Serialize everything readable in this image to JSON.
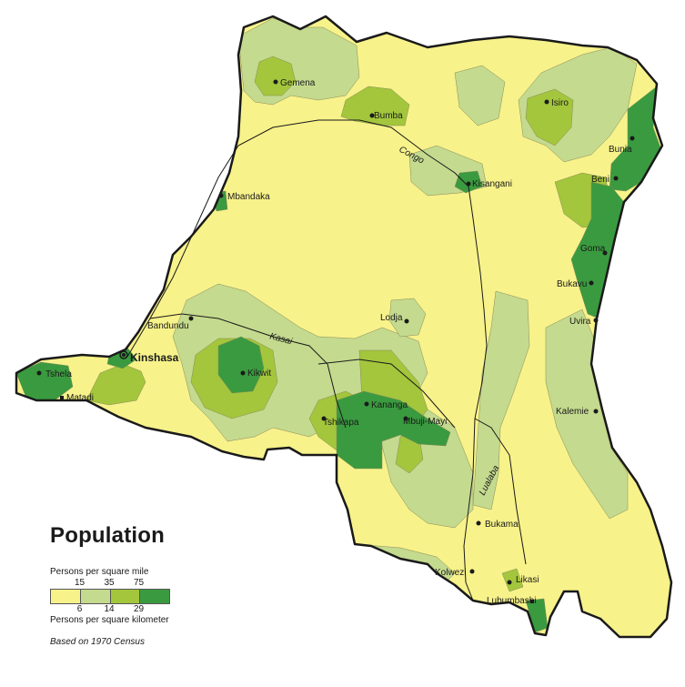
{
  "colors": {
    "density_0": "#f7f28a",
    "density_1": "#c4da8e",
    "density_2": "#a3c63c",
    "density_3": "#3a9a3f",
    "river": "#1a1a1a",
    "border": "#1a1a1a"
  },
  "cities": [
    {
      "name": "Gemena"
    },
    {
      "name": "Bumba"
    },
    {
      "name": "Isiro"
    },
    {
      "name": "Bunia"
    },
    {
      "name": "Kisangani"
    },
    {
      "name": "Beni"
    },
    {
      "name": "Mbandaka"
    },
    {
      "name": "Goma"
    },
    {
      "name": "Bukavu"
    },
    {
      "name": "Uvira"
    },
    {
      "name": "Bandundu"
    },
    {
      "name": "Lodja"
    },
    {
      "name": "Kinshasa"
    },
    {
      "name": "Kikwit"
    },
    {
      "name": "Tshela"
    },
    {
      "name": "Matadi"
    },
    {
      "name": "Tshikapa"
    },
    {
      "name": "Kananga"
    },
    {
      "name": "Mbuji-Mayi"
    },
    {
      "name": "Kalemie"
    },
    {
      "name": "Bukama"
    },
    {
      "name": "Kolwezi"
    },
    {
      "name": "Likasi"
    },
    {
      "name": "Lubumbashi"
    }
  ],
  "rivers": {
    "congo": "Congo",
    "kasai": "Kasai",
    "lualaba": "Lualaba"
  },
  "legend": {
    "title": "Population",
    "mile_label": "Persons per square mile",
    "mile_ticks": [
      "15",
      "35",
      "75"
    ],
    "km_ticks": [
      "6",
      "14",
      "29"
    ],
    "km_label": "Persons per square kilometer",
    "source": "Based on 1970 Census"
  }
}
